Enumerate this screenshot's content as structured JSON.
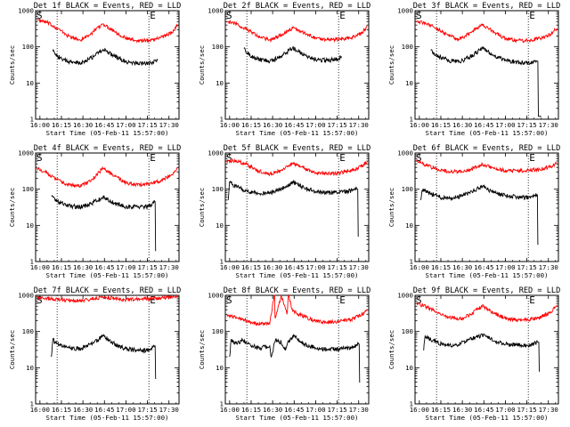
{
  "figure": {
    "x_ticks": [
      "16:00",
      "16:15",
      "16:30",
      "16:45",
      "17:00",
      "17:15",
      "17:30"
    ],
    "y_ticks": [
      "1",
      "10",
      "100",
      "1000"
    ],
    "marker_start": "S",
    "marker_end": "E",
    "colors": {
      "events": "#000000",
      "lld": "#ff0000",
      "axes": "#000000",
      "background": "#ffffff"
    }
  },
  "chart_data": [
    {
      "type": "line",
      "title": "Det 1f BLACK = Events, RED = LLD",
      "xlabel": "Start Time (05-Feb-11 15:57:00)",
      "ylabel": "Counts/sec",
      "yscale": "log",
      "ylim": [
        1,
        1000
      ],
      "xlim": [
        "15:57",
        "17:37"
      ],
      "time_markers": [
        "16:12",
        "17:16"
      ],
      "series": [
        {
          "color": "#ff0000",
          "x": [
            "15:58",
            "16:05",
            "16:12",
            "16:20",
            "16:28",
            "16:36",
            "16:44",
            "16:52",
            "17:00",
            "17:08",
            "17:16",
            "17:24",
            "17:32",
            "17:36"
          ],
          "y": [
            550,
            470,
            330,
            195,
            155,
            235,
            430,
            270,
            170,
            150,
            150,
            180,
            250,
            400
          ]
        },
        {
          "color": "#000000",
          "x": [
            "16:09",
            "16:12",
            "16:20",
            "16:28",
            "16:36",
            "16:44",
            "16:52",
            "17:00",
            "17:08",
            "17:16",
            "17:22"
          ],
          "y": [
            75,
            55,
            38,
            35,
            50,
            85,
            55,
            38,
            34,
            35,
            42
          ]
        }
      ]
    },
    {
      "type": "line",
      "title": "Det 2f BLACK = Events, RED = LLD",
      "xlabel": "Start Time (05-Feb-11 15:57:00)",
      "ylabel": "Counts/sec",
      "yscale": "log",
      "ylim": [
        1,
        1000
      ],
      "xlim": [
        "15:57",
        "17:37"
      ],
      "time_markers": [
        "16:12",
        "17:16"
      ],
      "series": [
        {
          "color": "#ff0000",
          "x": [
            "15:58",
            "16:05",
            "16:12",
            "16:20",
            "16:28",
            "16:36",
            "16:44",
            "16:52",
            "17:00",
            "17:08",
            "17:16",
            "17:24",
            "17:32",
            "17:36"
          ],
          "y": [
            500,
            420,
            310,
            195,
            155,
            210,
            330,
            250,
            175,
            160,
            160,
            175,
            240,
            370
          ]
        },
        {
          "color": "#000000",
          "x": [
            "16:10",
            "16:12",
            "16:20",
            "16:28",
            "16:36",
            "16:44",
            "16:52",
            "17:00",
            "17:08",
            "17:16",
            "17:18"
          ],
          "y": [
            90,
            65,
            45,
            40,
            55,
            95,
            60,
            45,
            42,
            48,
            55
          ]
        }
      ]
    },
    {
      "type": "line",
      "title": "Det 3f BLACK = Events, RED = LLD",
      "xlabel": "Start Time (05-Feb-11 15:57:00)",
      "ylabel": "Counts/sec",
      "yscale": "log",
      "ylim": [
        1,
        1000
      ],
      "xlim": [
        "15:57",
        "17:37"
      ],
      "time_markers": [
        "16:12",
        "17:16"
      ],
      "series": [
        {
          "color": "#ff0000",
          "x": [
            "15:58",
            "16:05",
            "16:12",
            "16:20",
            "16:28",
            "16:36",
            "16:44",
            "16:52",
            "17:00",
            "17:08",
            "17:16",
            "17:24",
            "17:32",
            "17:36"
          ],
          "y": [
            520,
            430,
            330,
            210,
            160,
            250,
            420,
            260,
            170,
            150,
            150,
            170,
            230,
            330
          ]
        },
        {
          "color": "#000000",
          "x": [
            "16:08",
            "16:12",
            "16:20",
            "16:28",
            "16:36",
            "16:44",
            "16:52",
            "17:00",
            "17:08",
            "17:16",
            "17:22",
            "17:24",
            "17:25"
          ],
          "y": [
            80,
            60,
            42,
            38,
            55,
            90,
            58,
            42,
            38,
            36,
            40,
            1.2,
            1.2
          ]
        }
      ]
    },
    {
      "type": "line",
      "title": "Det 4f BLACK = Events, RED = LLD",
      "xlabel": "Start Time (05-Feb-11 15:57:00)",
      "ylabel": "Counts/sec",
      "yscale": "log",
      "ylim": [
        1,
        1000
      ],
      "xlim": [
        "15:57",
        "17:37"
      ],
      "time_markers": [
        "16:12",
        "17:16"
      ],
      "series": [
        {
          "color": "#ff0000",
          "x": [
            "15:58",
            "16:05",
            "16:12",
            "16:20",
            "16:28",
            "16:36",
            "16:44",
            "16:52",
            "17:00",
            "17:08",
            "17:16",
            "17:24",
            "17:32",
            "17:36"
          ],
          "y": [
            380,
            280,
            180,
            130,
            120,
            180,
            380,
            230,
            150,
            130,
            140,
            170,
            250,
            380
          ]
        },
        {
          "color": "#000000",
          "x": [
            "16:08",
            "16:12",
            "16:20",
            "16:28",
            "16:36",
            "16:44",
            "16:52",
            "17:00",
            "17:08",
            "17:16",
            "17:20",
            "17:21"
          ],
          "y": [
            65,
            45,
            35,
            32,
            40,
            62,
            40,
            33,
            32,
            33,
            45,
            2
          ]
        }
      ]
    },
    {
      "type": "line",
      "title": "Det 5f BLACK = Events, RED = LLD",
      "xlabel": "Start Time (05-Feb-11 15:57:00)",
      "ylabel": "Counts/sec",
      "yscale": "log",
      "ylim": [
        1,
        1000
      ],
      "xlim": [
        "15:57",
        "17:37"
      ],
      "time_markers": [
        "16:12",
        "17:16"
      ],
      "series": [
        {
          "color": "#ff0000",
          "x": [
            "15:58",
            "16:05",
            "16:12",
            "16:20",
            "16:28",
            "16:36",
            "16:44",
            "16:52",
            "17:00",
            "17:08",
            "17:16",
            "17:24",
            "17:32",
            "17:36"
          ],
          "y": [
            620,
            600,
            480,
            320,
            260,
            330,
            520,
            380,
            290,
            270,
            280,
            320,
            420,
            600
          ]
        },
        {
          "color": "#000000",
          "x": [
            "15:59",
            "16:00",
            "16:04",
            "16:12",
            "16:20",
            "16:28",
            "16:36",
            "16:44",
            "16:52",
            "17:00",
            "17:08",
            "17:16",
            "17:24",
            "17:29",
            "17:30"
          ],
          "y": [
            50,
            160,
            120,
            90,
            75,
            80,
            100,
            160,
            110,
            85,
            80,
            80,
            90,
            100,
            5
          ]
        }
      ]
    },
    {
      "type": "line",
      "title": "Det 6f BLACK = Events, RED = LLD",
      "xlabel": "Start Time (05-Feb-11 15:57:00)",
      "ylabel": "Counts/sec",
      "yscale": "log",
      "ylim": [
        1,
        1000
      ],
      "xlim": [
        "15:57",
        "17:37"
      ],
      "time_markers": [
        "16:12",
        "17:16"
      ],
      "series": [
        {
          "color": "#ff0000",
          "x": [
            "15:58",
            "16:05",
            "16:12",
            "16:20",
            "16:28",
            "16:36",
            "16:44",
            "16:52",
            "17:00",
            "17:08",
            "17:16",
            "17:24",
            "17:32",
            "17:36"
          ],
          "y": [
            600,
            450,
            360,
            310,
            300,
            350,
            500,
            370,
            330,
            320,
            330,
            360,
            420,
            520
          ]
        },
        {
          "color": "#000000",
          "x": [
            "16:01",
            "16:02",
            "16:08",
            "16:16",
            "16:24",
            "16:32",
            "16:40",
            "16:45",
            "16:52",
            "17:00",
            "17:08",
            "17:16",
            "17:22",
            "17:23"
          ],
          "y": [
            50,
            95,
            75,
            58,
            55,
            70,
            100,
            115,
            80,
            65,
            62,
            58,
            70,
            3
          ]
        }
      ]
    },
    {
      "type": "line",
      "title": "Det 7f BLACK = Events, RED = LLD",
      "xlabel": "Start Time (05-Feb-11 15:57:00)",
      "ylabel": "Counts/sec",
      "yscale": "log",
      "ylim": [
        1,
        1000
      ],
      "xlim": [
        "15:57",
        "17:37"
      ],
      "time_markers": [
        "16:12",
        "17:16"
      ],
      "series": [
        {
          "color": "#ff0000",
          "x": [
            "15:58",
            "16:05",
            "16:12",
            "16:20",
            "16:28",
            "16:36",
            "16:44",
            "16:52",
            "17:00",
            "17:08",
            "17:16",
            "17:24",
            "17:32",
            "17:36"
          ],
          "y": [
            900,
            820,
            780,
            720,
            700,
            780,
            900,
            820,
            760,
            780,
            820,
            850,
            900,
            950
          ]
        },
        {
          "color": "#000000",
          "x": [
            "16:08",
            "16:09",
            "16:12",
            "16:20",
            "16:28",
            "16:36",
            "16:44",
            "16:52",
            "17:00",
            "17:08",
            "17:16",
            "17:20",
            "17:21"
          ],
          "y": [
            20,
            60,
            45,
            35,
            33,
            45,
            75,
            45,
            33,
            30,
            30,
            40,
            5
          ]
        }
      ]
    },
    {
      "type": "line",
      "title": "Det 8f BLACK = Events, RED = LLD",
      "xlabel": "Start Time (05-Feb-11 15:57:00)",
      "ylabel": "Counts/sec",
      "yscale": "log",
      "ylim": [
        1,
        1000
      ],
      "xlim": [
        "15:57",
        "17:37"
      ],
      "time_markers": [
        "16:12",
        "17:16"
      ],
      "series": [
        {
          "color": "#ff0000",
          "x": [
            "15:58",
            "16:05",
            "16:12",
            "16:20",
            "16:28",
            "16:31",
            "16:32",
            "16:36",
            "16:40",
            "16:41",
            "16:44",
            "16:52",
            "17:00",
            "17:08",
            "17:16",
            "17:24",
            "17:32",
            "17:36"
          ],
          "y": [
            280,
            240,
            200,
            160,
            165,
            1000,
            240,
            1000,
            300,
            1000,
            360,
            260,
            190,
            180,
            190,
            210,
            290,
            380
          ]
        },
        {
          "color": "#000000",
          "x": [
            "16:00",
            "16:01",
            "16:05",
            "16:09",
            "16:12",
            "16:20",
            "16:28",
            "16:29",
            "16:32",
            "16:36",
            "16:39",
            "16:41",
            "16:45",
            "16:52",
            "17:00",
            "17:08",
            "17:16",
            "17:25",
            "17:30",
            "17:31"
          ],
          "y": [
            20,
            60,
            45,
            60,
            45,
            35,
            40,
            20,
            60,
            50,
            30,
            55,
            75,
            45,
            35,
            32,
            32,
            36,
            45,
            4
          ]
        }
      ]
    },
    {
      "type": "line",
      "title": "Det 9f BLACK = Events, RED = LLD",
      "xlabel": "Start Time (05-Feb-11 15:57:00)",
      "ylabel": "Counts/sec",
      "yscale": "log",
      "ylim": [
        1,
        1000
      ],
      "xlim": [
        "15:57",
        "17:37"
      ],
      "time_markers": [
        "16:12",
        "17:16"
      ],
      "series": [
        {
          "color": "#ff0000",
          "x": [
            "15:58",
            "16:05",
            "16:12",
            "16:20",
            "16:28",
            "16:36",
            "16:44",
            "16:52",
            "17:00",
            "17:08",
            "17:16",
            "17:24",
            "17:32",
            "17:36"
          ],
          "y": [
            600,
            480,
            350,
            250,
            220,
            300,
            520,
            320,
            230,
            210,
            210,
            250,
            340,
            550
          ]
        },
        {
          "color": "#000000",
          "x": [
            "16:03",
            "16:04",
            "16:08",
            "16:16",
            "16:24",
            "16:32",
            "16:40",
            "16:46",
            "16:52",
            "17:00",
            "17:08",
            "17:16",
            "17:23",
            "17:24"
          ],
          "y": [
            30,
            75,
            60,
            45,
            40,
            52,
            72,
            80,
            55,
            44,
            42,
            42,
            50,
            8
          ]
        }
      ]
    }
  ]
}
